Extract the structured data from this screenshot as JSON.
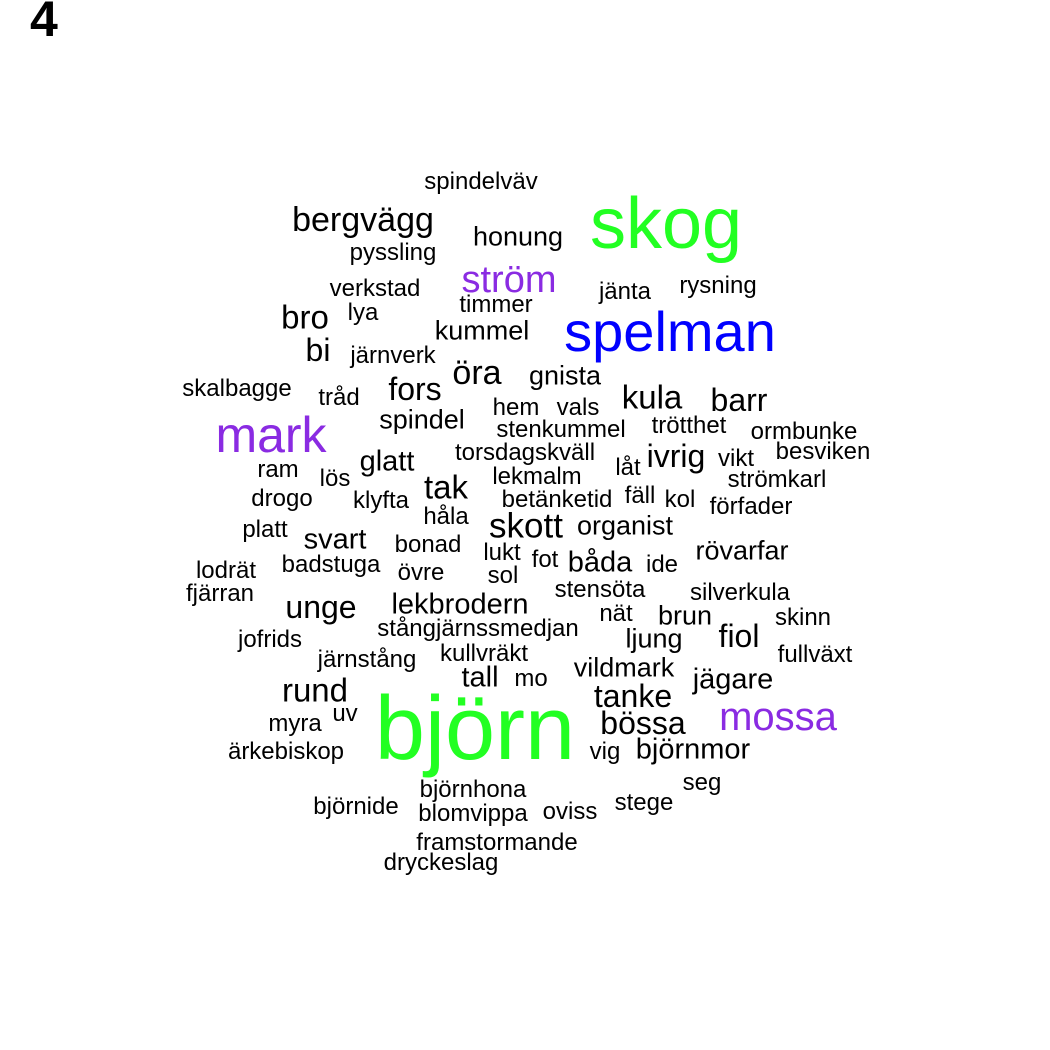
{
  "panel_label": "4",
  "colors": {
    "green": "#22ff22",
    "blue": "#0000ff",
    "purple": "#8a2be2",
    "black": "#000000"
  },
  "words": [
    {
      "text": "spindelväv",
      "color": "black"
    },
    {
      "text": "skog",
      "color": "green"
    },
    {
      "text": "bergvägg",
      "color": "black"
    },
    {
      "text": "honung",
      "color": "black"
    },
    {
      "text": "pyssling",
      "color": "black"
    },
    {
      "text": "ström",
      "color": "purple"
    },
    {
      "text": "verkstad",
      "color": "black"
    },
    {
      "text": "jänta",
      "color": "black"
    },
    {
      "text": "rysning",
      "color": "black"
    },
    {
      "text": "timmer",
      "color": "black"
    },
    {
      "text": "bro",
      "color": "black"
    },
    {
      "text": "lya",
      "color": "black"
    },
    {
      "text": "spelman",
      "color": "blue"
    },
    {
      "text": "kummel",
      "color": "black"
    },
    {
      "text": "bi",
      "color": "black"
    },
    {
      "text": "järnverk",
      "color": "black"
    },
    {
      "text": "öra",
      "color": "black"
    },
    {
      "text": "gnista",
      "color": "black"
    },
    {
      "text": "skalbagge",
      "color": "black"
    },
    {
      "text": "tråd",
      "color": "black"
    },
    {
      "text": "fors",
      "color": "black"
    },
    {
      "text": "kula",
      "color": "black"
    },
    {
      "text": "barr",
      "color": "black"
    },
    {
      "text": "hem",
      "color": "black"
    },
    {
      "text": "vals",
      "color": "black"
    },
    {
      "text": "mark",
      "color": "purple"
    },
    {
      "text": "spindel",
      "color": "black"
    },
    {
      "text": "stenkummel",
      "color": "black"
    },
    {
      "text": "trötthet",
      "color": "black"
    },
    {
      "text": "ormbunke",
      "color": "black"
    },
    {
      "text": "torsdagskväll",
      "color": "black"
    },
    {
      "text": "ivrig",
      "color": "black"
    },
    {
      "text": "besviken",
      "color": "black"
    },
    {
      "text": "glatt",
      "color": "black"
    },
    {
      "text": "ram",
      "color": "black"
    },
    {
      "text": "låt",
      "color": "black"
    },
    {
      "text": "vikt",
      "color": "black"
    },
    {
      "text": "lös",
      "color": "black"
    },
    {
      "text": "lekmalm",
      "color": "black"
    },
    {
      "text": "strömkarl",
      "color": "black"
    },
    {
      "text": "tak",
      "color": "black"
    },
    {
      "text": "drogo",
      "color": "black"
    },
    {
      "text": "klyfta",
      "color": "black"
    },
    {
      "text": "betänketid",
      "color": "black"
    },
    {
      "text": "fäll",
      "color": "black"
    },
    {
      "text": "kol",
      "color": "black"
    },
    {
      "text": "förfader",
      "color": "black"
    },
    {
      "text": "håla",
      "color": "black"
    },
    {
      "text": "platt",
      "color": "black"
    },
    {
      "text": "skott",
      "color": "black"
    },
    {
      "text": "organist",
      "color": "black"
    },
    {
      "text": "svart",
      "color": "black"
    },
    {
      "text": "bonad",
      "color": "black"
    },
    {
      "text": "lukt",
      "color": "black"
    },
    {
      "text": "rövarfar",
      "color": "black"
    },
    {
      "text": "fot",
      "color": "black"
    },
    {
      "text": "båda",
      "color": "black"
    },
    {
      "text": "ide",
      "color": "black"
    },
    {
      "text": "badstuga",
      "color": "black"
    },
    {
      "text": "lodrät",
      "color": "black"
    },
    {
      "text": "övre",
      "color": "black"
    },
    {
      "text": "sol",
      "color": "black"
    },
    {
      "text": "stensöta",
      "color": "black"
    },
    {
      "text": "fjärran",
      "color": "black"
    },
    {
      "text": "silverkula",
      "color": "black"
    },
    {
      "text": "unge",
      "color": "black"
    },
    {
      "text": "lekbrodern",
      "color": "black"
    },
    {
      "text": "nät",
      "color": "black"
    },
    {
      "text": "brun",
      "color": "black"
    },
    {
      "text": "skinn",
      "color": "black"
    },
    {
      "text": "stångjärnssmedjan",
      "color": "black"
    },
    {
      "text": "jofrids",
      "color": "black"
    },
    {
      "text": "ljung",
      "color": "black"
    },
    {
      "text": "fiol",
      "color": "black"
    },
    {
      "text": "fullväxt",
      "color": "black"
    },
    {
      "text": "kullvräkt",
      "color": "black"
    },
    {
      "text": "järnstång",
      "color": "black"
    },
    {
      "text": "vildmark",
      "color": "black"
    },
    {
      "text": "tall",
      "color": "black"
    },
    {
      "text": "mo",
      "color": "black"
    },
    {
      "text": "jägare",
      "color": "black"
    },
    {
      "text": "rund",
      "color": "black"
    },
    {
      "text": "tanke",
      "color": "black"
    },
    {
      "text": "björn",
      "color": "green"
    },
    {
      "text": "mossa",
      "color": "purple"
    },
    {
      "text": "uv",
      "color": "black"
    },
    {
      "text": "myra",
      "color": "black"
    },
    {
      "text": "bössa",
      "color": "black"
    },
    {
      "text": "ärkebiskop",
      "color": "black"
    },
    {
      "text": "vig",
      "color": "black"
    },
    {
      "text": "björnmor",
      "color": "black"
    },
    {
      "text": "seg",
      "color": "black"
    },
    {
      "text": "björnhona",
      "color": "black"
    },
    {
      "text": "stege",
      "color": "black"
    },
    {
      "text": "björnide",
      "color": "black"
    },
    {
      "text": "blomvippa",
      "color": "black"
    },
    {
      "text": "oviss",
      "color": "black"
    },
    {
      "text": "framstormande",
      "color": "black"
    },
    {
      "text": "dryckeslag",
      "color": "black"
    }
  ]
}
